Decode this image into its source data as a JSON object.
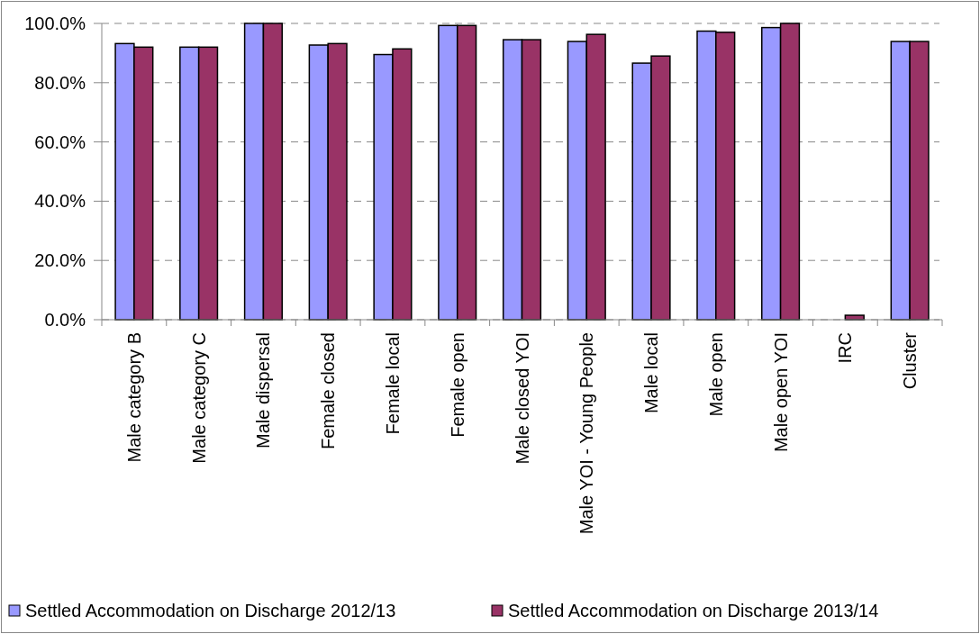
{
  "chart_data": {
    "type": "bar",
    "categories": [
      "Male category B",
      "Male category C",
      "Male dispersal",
      "Female closed",
      "Female local",
      "Female open",
      "Male closed YOI",
      "Male YOI - Young People",
      "Male local",
      "Male open",
      "Male open YOI",
      "IRC",
      "Cluster"
    ],
    "series": [
      {
        "name": "Settled Accommodation on Discharge 2012/13",
        "color": "#9999ff",
        "values": [
          93.2,
          92.0,
          100,
          92.7,
          89.5,
          99.3,
          94.5,
          93.9,
          86.6,
          97.4,
          98.6,
          null,
          93.9
        ]
      },
      {
        "name": "Settled Accommodation on Discharge 2013/14",
        "color": "#993366",
        "values": [
          92.0,
          92.0,
          100,
          93.2,
          91.4,
          99.3,
          94.5,
          96.3,
          89.0,
          97.0,
          100,
          1.5,
          93.9
        ]
      }
    ],
    "ylim": [
      0,
      100
    ],
    "yticks": [
      {
        "value": 0,
        "label": "0.0%"
      },
      {
        "value": 20,
        "label": "20.0%"
      },
      {
        "value": 40,
        "label": "40.0%"
      },
      {
        "value": 60,
        "label": "60.0%"
      },
      {
        "value": 80,
        "label": "80.0%"
      },
      {
        "value": 100,
        "label": "100.0%"
      }
    ],
    "grid": "y",
    "legend": "bottom"
  }
}
